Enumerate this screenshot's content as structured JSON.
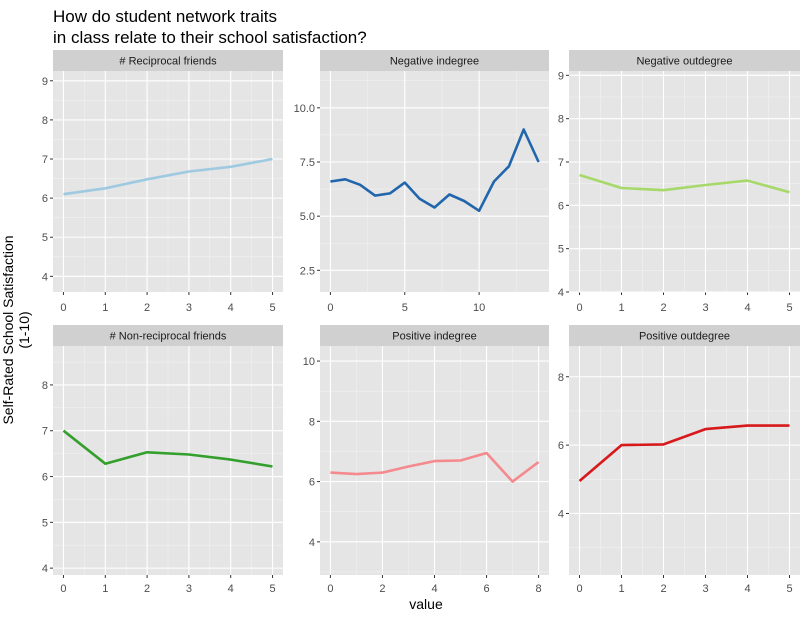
{
  "title_line1": "How do student network traits",
  "title_line2": "in class relate to their school satisfaction?",
  "xlabel": "value",
  "ylabel_line1": "Self-Rated School Satisfaction",
  "ylabel_line2": "(1-10)",
  "colors": {
    "panel_bg": "#e5e5e5",
    "strip_bg": "#d0d0d0",
    "grid_major": "#ffffff",
    "grid_minor": "#f2f2f2"
  },
  "chart_data": [
    {
      "type": "line",
      "title": "# Reciprocal friends",
      "color": "#9ecae1",
      "x": [
        0,
        1,
        2,
        3,
        4,
        5
      ],
      "y": [
        6.1,
        6.25,
        6.48,
        6.68,
        6.8,
        7.0
      ],
      "xticks": [
        0,
        1,
        2,
        3,
        4,
        5
      ],
      "yticks": [
        4,
        5,
        6,
        7,
        8,
        9
      ],
      "xlim": [
        -0.25,
        5.25
      ],
      "ylim": [
        3.6,
        9.25
      ]
    },
    {
      "type": "line",
      "title": "Negative indegree",
      "color": "#2166ac",
      "x": [
        0,
        1,
        2,
        3,
        4,
        5,
        6,
        7,
        8,
        9,
        10,
        11,
        12,
        13,
        14
      ],
      "y": [
        6.6,
        6.7,
        6.45,
        5.95,
        6.05,
        6.55,
        5.8,
        5.4,
        6.0,
        5.7,
        5.25,
        6.6,
        7.3,
        9.0,
        7.5
      ],
      "xticks": [
        0,
        5,
        10
      ],
      "yticks": [
        2.5,
        5.0,
        7.5,
        10.0
      ],
      "xlim": [
        -0.7,
        14.7
      ],
      "ylim": [
        1.5,
        11.7
      ]
    },
    {
      "type": "line",
      "title": "Negative outdegree",
      "color": "#a6d96a",
      "x": [
        0,
        1,
        2,
        3,
        4,
        5
      ],
      "y": [
        6.7,
        6.4,
        6.35,
        6.47,
        6.57,
        6.3
      ],
      "xticks": [
        0,
        1,
        2,
        3,
        4,
        5
      ],
      "yticks": [
        4,
        5,
        6,
        7,
        8,
        9
      ],
      "xlim": [
        -0.25,
        5.25
      ],
      "ylim": [
        4.0,
        9.1
      ]
    },
    {
      "type": "line",
      "title": "# Non-reciprocal friends",
      "color": "#33a02c",
      "x": [
        0,
        1,
        2,
        3,
        4,
        5
      ],
      "y": [
        7.0,
        6.28,
        6.53,
        6.48,
        6.37,
        6.22
      ],
      "xticks": [
        0,
        1,
        2,
        3,
        4,
        5
      ],
      "yticks": [
        4,
        5,
        6,
        7,
        8
      ],
      "xlim": [
        -0.25,
        5.25
      ],
      "ylim": [
        3.85,
        8.85
      ]
    },
    {
      "type": "line",
      "title": "Positive indegree",
      "color": "#f4898e",
      "x": [
        0,
        1,
        2,
        3,
        4,
        5,
        6,
        7,
        8
      ],
      "y": [
        6.3,
        6.25,
        6.3,
        6.5,
        6.68,
        6.7,
        6.95,
        6.0,
        6.65
      ],
      "xticks": [
        0,
        2,
        4,
        6,
        8
      ],
      "yticks": [
        4,
        6,
        8,
        10
      ],
      "xlim": [
        -0.4,
        8.4
      ],
      "ylim": [
        2.9,
        10.5
      ]
    },
    {
      "type": "line",
      "title": "Positive outdegree",
      "color": "#d7191c",
      "x": [
        0,
        1,
        2,
        3,
        4,
        5
      ],
      "y": [
        4.95,
        6.0,
        6.02,
        6.47,
        6.57,
        6.57
      ],
      "xticks": [
        0,
        1,
        2,
        3,
        4,
        5
      ],
      "yticks": [
        4,
        6,
        8
      ],
      "xlim": [
        -0.25,
        5.25
      ],
      "ylim": [
        2.2,
        8.9
      ]
    }
  ]
}
